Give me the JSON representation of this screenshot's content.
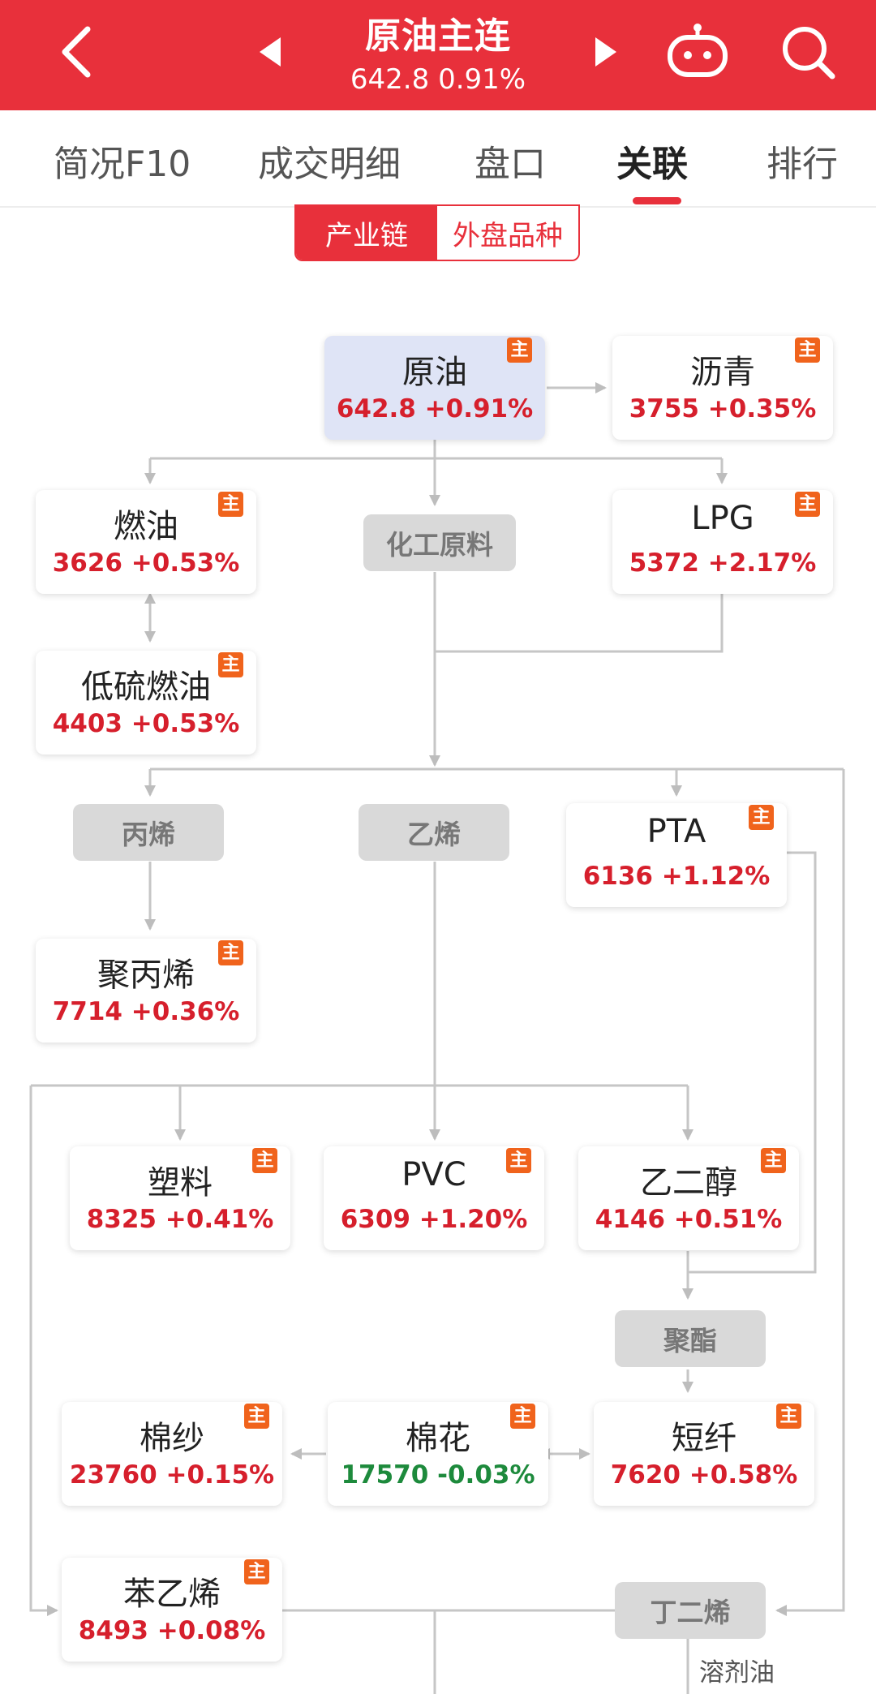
{
  "header": {
    "title": "原油主连",
    "price": "642.8",
    "change": "0.91%",
    "back_icon": "chevron-left-icon",
    "prev_icon": "triangle-left-icon",
    "next_icon": "triangle-right-icon",
    "robot_icon": "robot-icon",
    "search_icon": "search-icon"
  },
  "tabs": [
    {
      "label": "简况F10",
      "active": false
    },
    {
      "label": "成交明细",
      "active": false
    },
    {
      "label": "盘口",
      "active": false
    },
    {
      "label": "关联",
      "active": true
    },
    {
      "label": "排行",
      "active": false
    }
  ],
  "segment": {
    "chain_label": "产业链",
    "foreign_label": "外盘品种",
    "active": "产业链"
  },
  "badge_text": "主",
  "nodes": {
    "crude": {
      "name": "原油",
      "value": "642.8 +0.91%"
    },
    "asphalt": {
      "name": "沥青",
      "value": "3755 +0.35%"
    },
    "fuel_oil": {
      "name": "燃油",
      "value": "3626 +0.53%"
    },
    "lpg": {
      "name": "LPG",
      "value": "5372 +2.17%"
    },
    "low_sulfur": {
      "name": "低硫燃油",
      "value": "4403 +0.53%"
    },
    "pta": {
      "name": "PTA",
      "value": "6136 +1.12%"
    },
    "pp": {
      "name": "聚丙烯",
      "value": "7714 +0.36%"
    },
    "plastic": {
      "name": "塑料",
      "value": "8325 +0.41%"
    },
    "pvc": {
      "name": "PVC",
      "value": "6309 +1.20%"
    },
    "eg": {
      "name": "乙二醇",
      "value": "4146 +0.51%"
    },
    "cotton_yarn": {
      "name": "棉纱",
      "value": "23760 +0.15%"
    },
    "cotton": {
      "name": "棉花",
      "value": "17570 -0.03%"
    },
    "staple": {
      "name": "短纤",
      "value": "7620 +0.58%"
    },
    "styrene": {
      "name": "苯乙烯",
      "value": "8493 +0.08%"
    }
  },
  "categories": {
    "chem": "化工原料",
    "propylene": "丙烯",
    "ethylene": "乙烯",
    "polyester": "聚酯",
    "butadiene": "丁二烯"
  },
  "labels": {
    "solvent": "溶剂油"
  },
  "colors": {
    "brand_red": "#e8303b",
    "up_red": "#d61f2c",
    "down_green": "#1d8a3c",
    "badge_orange": "#f0631c",
    "highlight_bg": "#dfe4f6"
  }
}
